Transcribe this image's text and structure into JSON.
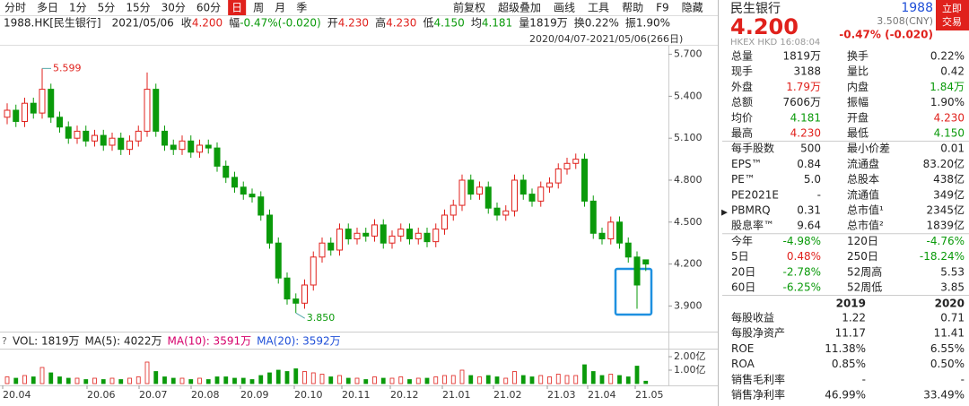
{
  "toolbar": {
    "periods": [
      "分时",
      "多日",
      "1分",
      "5分",
      "15分",
      "30分",
      "60分",
      "日",
      "周",
      "月",
      "季"
    ],
    "tools": [
      "前复权",
      "超级叠加",
      "画线",
      "工具",
      "帮助",
      "F9",
      "隐藏"
    ]
  },
  "info": {
    "symbol": "1988.HK[民生银行]",
    "date": "2021/05/06",
    "items": [
      {
        "label": "收",
        "value": "4.200",
        "color": "#e0211c"
      },
      {
        "label": "幅",
        "value": "-0.47%(-0.020)",
        "color": "#0a9a0a"
      },
      {
        "label": "开",
        "value": "4.230",
        "color": "#e0211c"
      },
      {
        "label": "高",
        "value": "4.230",
        "color": "#e0211c"
      },
      {
        "label": "低",
        "value": "4.150",
        "color": "#0a9a0a"
      },
      {
        "label": "均",
        "value": "4.181",
        "color": "#0a9a0a"
      },
      {
        "label": "量",
        "value": "1819万",
        "color": "#222222"
      },
      {
        "label": "换",
        "value": "0.22%",
        "color": "#222222"
      },
      {
        "label": "振",
        "value": "1.90%",
        "color": "#222222"
      }
    ],
    "range": "2020/04/07-2021/05/06(266日)"
  },
  "chart_data": {
    "type": "candlestick",
    "up_color": "#e0211c",
    "down_color": "#0a9a0a",
    "candles": [
      [
        5.25,
        5.35,
        5.2,
        5.3
      ],
      [
        5.3,
        5.34,
        5.18,
        5.22
      ],
      [
        5.22,
        5.39,
        5.18,
        5.35
      ],
      [
        5.35,
        5.39,
        5.24,
        5.28
      ],
      [
        5.28,
        5.599,
        5.24,
        5.45
      ],
      [
        5.45,
        5.49,
        5.21,
        5.25
      ],
      [
        5.25,
        5.29,
        5.14,
        5.18
      ],
      [
        5.18,
        5.22,
        5.06,
        5.1
      ],
      [
        5.1,
        5.19,
        5.06,
        5.15
      ],
      [
        5.15,
        5.19,
        5.04,
        5.08
      ],
      [
        5.08,
        5.16,
        5.04,
        5.12
      ],
      [
        5.12,
        5.16,
        5.01,
        5.05
      ],
      [
        5.05,
        5.14,
        5.01,
        5.1
      ],
      [
        5.1,
        5.14,
        4.98,
        5.02
      ],
      [
        5.02,
        5.12,
        4.98,
        5.08
      ],
      [
        5.08,
        5.19,
        5.04,
        5.15
      ],
      [
        5.15,
        5.57,
        5.11,
        5.45
      ],
      [
        5.45,
        5.49,
        5.11,
        5.15
      ],
      [
        5.15,
        5.19,
        5.01,
        5.05
      ],
      [
        5.05,
        5.09,
        4.98,
        5.02
      ],
      [
        5.02,
        5.12,
        4.98,
        5.08
      ],
      [
        5.08,
        5.12,
        4.96,
        5
      ],
      [
        5,
        5.09,
        4.96,
        5.05
      ],
      [
        5.05,
        5.09,
        4.99,
        5.03
      ],
      [
        5.03,
        5.07,
        4.86,
        4.9
      ],
      [
        4.9,
        4.94,
        4.78,
        4.82
      ],
      [
        4.82,
        4.86,
        4.71,
        4.75
      ],
      [
        4.75,
        4.79,
        4.66,
        4.7
      ],
      [
        4.7,
        4.74,
        4.64,
        4.68
      ],
      [
        4.68,
        4.72,
        4.51,
        4.55
      ],
      [
        4.55,
        4.59,
        4.31,
        4.35
      ],
      [
        4.35,
        4.39,
        4.06,
        4.1
      ],
      [
        4.1,
        4.14,
        3.91,
        3.95
      ],
      [
        3.95,
        3.99,
        3.85,
        3.92
      ],
      [
        3.92,
        4.09,
        3.88,
        4.05
      ],
      [
        4.05,
        4.29,
        4.01,
        4.25
      ],
      [
        4.25,
        4.39,
        4.21,
        4.35
      ],
      [
        4.35,
        4.39,
        4.26,
        4.3
      ],
      [
        4.3,
        4.49,
        4.26,
        4.45
      ],
      [
        4.45,
        4.49,
        4.34,
        4.38
      ],
      [
        4.38,
        4.46,
        4.34,
        4.42
      ],
      [
        4.42,
        4.46,
        4.36,
        4.4
      ],
      [
        4.4,
        4.52,
        4.36,
        4.48
      ],
      [
        4.48,
        4.52,
        4.31,
        4.35
      ],
      [
        4.35,
        4.44,
        4.31,
        4.4
      ],
      [
        4.4,
        4.49,
        4.36,
        4.45
      ],
      [
        4.45,
        4.49,
        4.34,
        4.38
      ],
      [
        4.38,
        4.46,
        4.34,
        4.42
      ],
      [
        4.42,
        4.46,
        4.32,
        4.36
      ],
      [
        4.36,
        4.49,
        4.32,
        4.45
      ],
      [
        4.45,
        4.59,
        4.41,
        4.55
      ],
      [
        4.55,
        4.66,
        4.51,
        4.62
      ],
      [
        4.62,
        4.84,
        4.58,
        4.8
      ],
      [
        4.8,
        4.84,
        4.66,
        4.7
      ],
      [
        4.7,
        4.79,
        4.66,
        4.75
      ],
      [
        4.75,
        4.79,
        4.56,
        4.6
      ],
      [
        4.6,
        4.64,
        4.51,
        4.55
      ],
      [
        4.55,
        4.62,
        4.51,
        4.58
      ],
      [
        4.58,
        4.84,
        4.54,
        4.8
      ],
      [
        4.8,
        4.84,
        4.66,
        4.7
      ],
      [
        4.7,
        4.74,
        4.61,
        4.65
      ],
      [
        4.65,
        4.79,
        4.61,
        4.75
      ],
      [
        4.75,
        4.82,
        4.71,
        4.78
      ],
      [
        4.78,
        4.92,
        4.74,
        4.88
      ],
      [
        4.88,
        4.96,
        4.84,
        4.92
      ],
      [
        4.92,
        4.99,
        4.88,
        4.95
      ],
      [
        4.95,
        4.99,
        4.61,
        4.65
      ],
      [
        4.65,
        4.69,
        4.38,
        4.42
      ],
      [
        4.42,
        4.46,
        4.34,
        4.38
      ],
      [
        4.38,
        4.54,
        4.34,
        4.5
      ],
      [
        4.5,
        4.54,
        4.31,
        4.35
      ],
      [
        4.35,
        4.39,
        4.21,
        4.25
      ],
      [
        4.25,
        4.29,
        3.88,
        4.05
      ],
      [
        4.23,
        4.23,
        4.15,
        4.2
      ]
    ],
    "ylim": [
      3.8,
      5.8
    ],
    "yticks": [
      {
        "value": 5.7,
        "label": "5.700"
      },
      {
        "value": 5.4,
        "label": "5.400"
      },
      {
        "value": 5.1,
        "label": "5.100"
      },
      {
        "value": 4.8,
        "label": "4.800"
      },
      {
        "value": 4.5,
        "label": "4.500"
      },
      {
        "value": 4.2,
        "label": "4.200"
      },
      {
        "value": 3.9,
        "label": "3.900"
      }
    ],
    "annotations": [
      {
        "value": 5.599,
        "label": "5.599"
      },
      {
        "value": 3.85,
        "label": "3.850"
      }
    ],
    "xlabels": [
      "20.04",
      "20.06",
      "20.07",
      "20.08",
      "20.09",
      "20.10",
      "20.11",
      "20.12",
      "21.01",
      "21.02",
      "21.03",
      "21.04",
      "21.05"
    ],
    "volume": {
      "legend": [
        {
          "text": "VOL: 1819万",
          "color": "#222222"
        },
        {
          "text": "MA(5): 4022万",
          "color": "#222222"
        },
        {
          "text": "MA(10): 3591万",
          "color": "#d6006b"
        },
        {
          "text": "MA(20): 3592万",
          "color": "#1f4fd8"
        }
      ],
      "values": [
        0.5,
        0.4,
        0.6,
        0.5,
        1.2,
        0.8,
        0.5,
        0.4,
        0.4,
        0.3,
        0.4,
        0.3,
        0.4,
        0.3,
        0.4,
        0.5,
        1.6,
        0.9,
        0.5,
        0.4,
        0.4,
        0.3,
        0.4,
        0.3,
        0.5,
        0.5,
        0.4,
        0.4,
        0.3,
        0.6,
        0.8,
        1.0,
        0.9,
        1.1,
        0.9,
        0.8,
        0.7,
        0.5,
        0.6,
        0.4,
        0.4,
        0.3,
        0.5,
        0.4,
        0.4,
        0.5,
        0.3,
        0.4,
        0.4,
        0.5,
        0.6,
        0.6,
        1.0,
        0.6,
        0.5,
        0.6,
        0.5,
        0.4,
        0.9,
        0.6,
        0.5,
        0.6,
        0.5,
        0.7,
        0.6,
        0.6,
        1.4,
        0.9,
        0.6,
        0.7,
        0.6,
        0.5,
        1.3,
        0.18
      ],
      "ylim": [
        0,
        2.4
      ],
      "yticks": [
        {
          "value": 2,
          "label": "2.00亿"
        },
        {
          "value": 1,
          "label": "1.00亿"
        }
      ]
    }
  },
  "quote": {
    "name": "民生银行",
    "code": "1988",
    "price": "4.200",
    "cny": "3.508(CNY)",
    "change": "-0.47% (-0.020)",
    "meta": "HKEX HKD 16:08:04",
    "button": [
      "立即",
      "交易"
    ]
  },
  "stats": [
    {
      "cells": [
        "总量",
        "1819万",
        "换手",
        "0.22%"
      ],
      "colors": [
        "#222222",
        "#222222"
      ]
    },
    {
      "cells": [
        "现手",
        "3188",
        "量比",
        "0.42"
      ],
      "colors": [
        "#222222",
        "#222222"
      ]
    },
    {
      "cells": [
        "外盘",
        "1.79万",
        "内盘",
        "1.84万"
      ],
      "colors": [
        "#e0211c",
        "#0a9a0a"
      ]
    },
    {
      "cells": [
        "总额",
        "7606万",
        "振幅",
        "1.90%"
      ],
      "colors": [
        "#222222",
        "#222222"
      ]
    },
    {
      "cells": [
        "均价",
        "4.181",
        "开盘",
        "4.230"
      ],
      "colors": [
        "#0a9a0a",
        "#e0211c"
      ]
    },
    {
      "cells": [
        "最高",
        "4.230",
        "最低",
        "4.150"
      ],
      "colors": [
        "#e0211c",
        "#0a9a0a"
      ]
    },
    {
      "cells": [
        "每手股数",
        "500",
        "最小价差",
        "0.01"
      ],
      "colors": [
        "#222222",
        "#222222"
      ]
    },
    {
      "cells": [
        "EPS™",
        "0.84",
        "流通盘",
        "83.20亿"
      ],
      "colors": [
        "#222222",
        "#222222"
      ]
    },
    {
      "cells": [
        "PE™",
        "5.0",
        "总股本",
        "438亿"
      ],
      "colors": [
        "#222222",
        "#222222"
      ]
    },
    {
      "cells": [
        "PE2021E",
        "-",
        "流通值",
        "349亿"
      ],
      "colors": [
        "#222222",
        "#222222"
      ]
    },
    {
      "cells": [
        "PBMRQ",
        "0.31",
        "总市值¹",
        "2345亿"
      ],
      "colors": [
        "#222222",
        "#222222"
      ]
    },
    {
      "cells": [
        "股息率™",
        "9.64",
        "总市值²",
        "1839亿"
      ],
      "colors": [
        "#222222",
        "#222222"
      ]
    },
    {
      "cells": [
        "今年",
        "-4.98%",
        "120日",
        "-4.76%"
      ],
      "colors": [
        "#0a9a0a",
        "#0a9a0a"
      ]
    },
    {
      "cells": [
        "5日",
        "0.48%",
        "250日",
        "-18.24%"
      ],
      "colors": [
        "#e0211c",
        "#0a9a0a"
      ]
    },
    {
      "cells": [
        "20日",
        "-2.78%",
        "52周高",
        "5.53"
      ],
      "colors": [
        "#0a9a0a",
        "#222222"
      ]
    },
    {
      "cells": [
        "60日",
        "-6.25%",
        "52周低",
        "3.85"
      ],
      "colors": [
        "#0a9a0a",
        "#222222"
      ]
    }
  ],
  "finance": {
    "header": [
      "2019",
      "2020"
    ],
    "rows": [
      [
        "每股收益",
        "1.22",
        "0.71"
      ],
      [
        "每股净资产",
        "11.17",
        "11.41"
      ],
      [
        "ROE",
        "11.38%",
        "6.55%"
      ],
      [
        "ROA",
        "0.85%",
        "0.50%"
      ],
      [
        "销售毛利率",
        "-",
        "-"
      ],
      [
        "销售净利率",
        "46.99%",
        "33.49%"
      ]
    ]
  }
}
